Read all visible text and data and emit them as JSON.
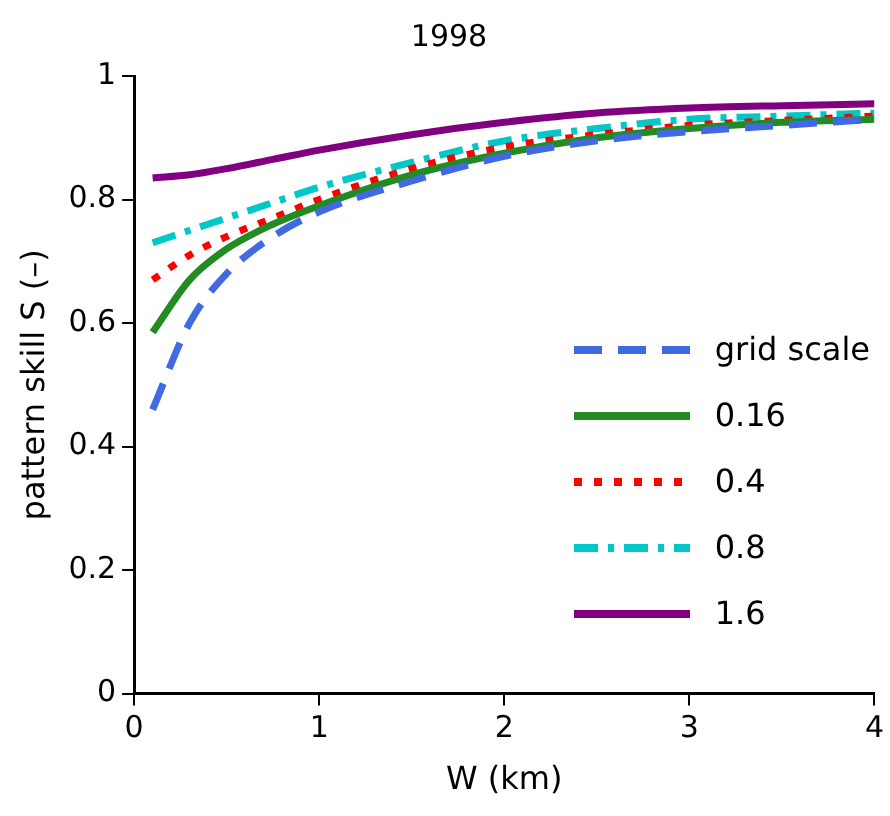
{
  "chart_data": {
    "type": "line",
    "title": "1998",
    "xlabel": "W (km)",
    "ylabel": "pattern skill S (–)",
    "xlim": [
      0,
      4
    ],
    "xticks": [
      0,
      1,
      2,
      3,
      4
    ],
    "ylim": [
      0,
      1
    ],
    "yticks": [
      0,
      0.2,
      0.4,
      0.6,
      0.8,
      1
    ],
    "grid": false,
    "legend": "right",
    "marker": "none",
    "x": [
      0.1,
      0.3,
      0.5,
      0.75,
      1,
      1.5,
      2,
      2.5,
      3,
      3.5,
      4
    ],
    "series": [
      {
        "name": "grid scale",
        "color": "#4169e1",
        "line_style": "dashed",
        "values": [
          0.46,
          0.6,
          0.68,
          0.74,
          0.78,
          0.83,
          0.87,
          0.895,
          0.91,
          0.92,
          0.93
        ]
      },
      {
        "name": "0.16",
        "color": "#228b22",
        "line_style": "solid",
        "values": [
          0.585,
          0.67,
          0.72,
          0.76,
          0.79,
          0.84,
          0.875,
          0.9,
          0.915,
          0.925,
          0.93
        ]
      },
      {
        "name": "0.4",
        "color": "#ff0000",
        "line_style": "dotted",
        "values": [
          0.67,
          0.71,
          0.74,
          0.77,
          0.8,
          0.85,
          0.885,
          0.905,
          0.92,
          0.928,
          0.935
        ]
      },
      {
        "name": "0.8",
        "color": "#00c8c8",
        "line_style": "dashdot",
        "values": [
          0.73,
          0.75,
          0.77,
          0.795,
          0.82,
          0.86,
          0.895,
          0.915,
          0.93,
          0.935,
          0.94
        ]
      },
      {
        "name": "1.6",
        "color": "#800080",
        "line_style": "solid",
        "values": [
          0.835,
          0.84,
          0.85,
          0.865,
          0.88,
          0.905,
          0.925,
          0.94,
          0.948,
          0.952,
          0.955
        ]
      }
    ]
  }
}
